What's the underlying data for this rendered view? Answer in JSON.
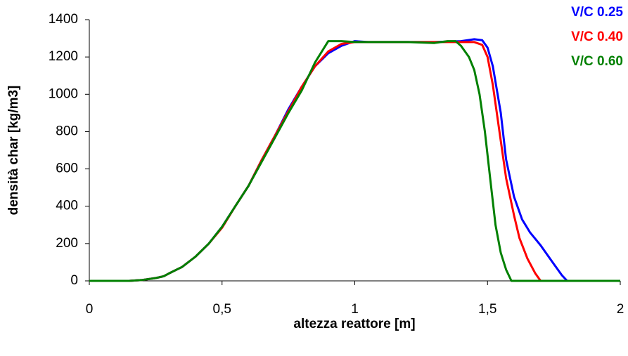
{
  "chart_data": {
    "type": "line",
    "xlabel": "altezza reattore [m]",
    "ylabel": "densità char [kg/m3]",
    "xlim": [
      0,
      2
    ],
    "xticks": [
      0,
      {
        "value": 0.5,
        "label": "0,5"
      },
      1,
      {
        "value": 1.5,
        "label": "1,5"
      },
      2
    ],
    "ylim": [
      0,
      1400
    ],
    "yticks": [
      0,
      200,
      400,
      600,
      800,
      1000,
      1200,
      1400
    ],
    "grid": false,
    "legend": "top-right",
    "series": [
      {
        "name": "V/C 0.25",
        "color": "#0000ff",
        "x": [
          0,
          0.15,
          0.2,
          0.25,
          0.28,
          0.3,
          0.35,
          0.4,
          0.45,
          0.5,
          0.55,
          0.6,
          0.65,
          0.7,
          0.75,
          0.8,
          0.85,
          0.9,
          0.95,
          1.0,
          1.05,
          1.1,
          1.2,
          1.3,
          1.4,
          1.45,
          1.48,
          1.5,
          1.52,
          1.55,
          1.57,
          1.6,
          1.63,
          1.66,
          1.7,
          1.75,
          1.78,
          1.8,
          1.85,
          2
        ],
        "values": [
          0,
          0,
          5,
          15,
          25,
          40,
          75,
          130,
          200,
          290,
          400,
          510,
          650,
          780,
          920,
          1040,
          1150,
          1220,
          1260,
          1285,
          1280,
          1280,
          1280,
          1280,
          1285,
          1295,
          1290,
          1250,
          1150,
          900,
          650,
          450,
          330,
          260,
          190,
          90,
          30,
          0,
          0,
          0
        ]
      },
      {
        "name": "V/C 0.40",
        "color": "#ff0000",
        "x": [
          0,
          0.15,
          0.2,
          0.25,
          0.28,
          0.3,
          0.35,
          0.4,
          0.45,
          0.5,
          0.55,
          0.6,
          0.65,
          0.7,
          0.75,
          0.8,
          0.85,
          0.9,
          0.95,
          1.0,
          1.1,
          1.2,
          1.3,
          1.4,
          1.45,
          1.48,
          1.5,
          1.52,
          1.55,
          1.57,
          1.6,
          1.62,
          1.65,
          1.68,
          1.7,
          2
        ],
        "values": [
          0,
          0,
          5,
          15,
          25,
          40,
          75,
          130,
          200,
          285,
          400,
          510,
          650,
          780,
          910,
          1040,
          1150,
          1230,
          1270,
          1280,
          1280,
          1280,
          1280,
          1280,
          1280,
          1265,
          1200,
          1050,
          750,
          550,
          350,
          230,
          120,
          40,
          0,
          0
        ]
      },
      {
        "name": "V/C 0.60",
        "color": "#008000",
        "x": [
          0,
          0.15,
          0.2,
          0.25,
          0.28,
          0.3,
          0.35,
          0.4,
          0.45,
          0.5,
          0.55,
          0.6,
          0.65,
          0.7,
          0.75,
          0.8,
          0.85,
          0.9,
          0.95,
          1.0,
          1.1,
          1.2,
          1.3,
          1.35,
          1.38,
          1.4,
          1.43,
          1.45,
          1.47,
          1.49,
          1.51,
          1.53,
          1.55,
          1.57,
          1.59,
          2
        ],
        "values": [
          0,
          0,
          5,
          15,
          25,
          40,
          75,
          130,
          200,
          290,
          400,
          510,
          640,
          770,
          900,
          1020,
          1170,
          1285,
          1285,
          1280,
          1280,
          1280,
          1275,
          1285,
          1285,
          1260,
          1200,
          1130,
          1000,
          800,
          550,
          300,
          150,
          60,
          0,
          0
        ]
      }
    ]
  }
}
